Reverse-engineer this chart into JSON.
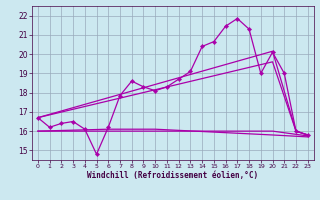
{
  "background_color": "#cce8f0",
  "grid_color": "#99aabb",
  "line_color": "#aa00aa",
  "xlabel": "Windchill (Refroidissement éolien,°C)",
  "xlim": [
    -0.5,
    23.5
  ],
  "ylim": [
    14.5,
    22.5
  ],
  "yticks": [
    15,
    16,
    17,
    18,
    19,
    20,
    21,
    22
  ],
  "xticks": [
    0,
    1,
    2,
    3,
    4,
    5,
    6,
    7,
    8,
    9,
    10,
    11,
    12,
    13,
    14,
    15,
    16,
    17,
    18,
    19,
    20,
    21,
    22,
    23
  ],
  "line1_x": [
    0,
    1,
    2,
    3,
    4,
    5,
    6,
    7,
    8,
    9,
    10,
    11,
    12,
    13,
    14,
    15,
    16,
    17,
    18,
    19,
    20,
    21,
    22,
    23
  ],
  "line1_y": [
    16.7,
    16.2,
    16.4,
    16.5,
    16.1,
    14.8,
    16.2,
    17.85,
    18.6,
    18.3,
    18.1,
    18.3,
    18.7,
    19.1,
    20.4,
    20.65,
    21.45,
    21.85,
    21.3,
    19.0,
    20.1,
    19.0,
    16.0,
    15.8
  ],
  "line2_x": [
    0,
    20,
    22,
    23
  ],
  "line2_y": [
    16.7,
    20.15,
    16.0,
    15.8
  ],
  "line3_x": [
    0,
    20,
    22,
    23
  ],
  "line3_y": [
    16.7,
    19.6,
    16.0,
    15.8
  ],
  "line4_x": [
    0,
    6,
    10,
    20,
    23
  ],
  "line4_y": [
    16.0,
    16.0,
    16.0,
    16.0,
    15.75
  ],
  "line5_x": [
    0,
    6,
    10,
    20,
    23
  ],
  "line5_y": [
    16.0,
    16.1,
    16.1,
    15.8,
    15.7
  ]
}
